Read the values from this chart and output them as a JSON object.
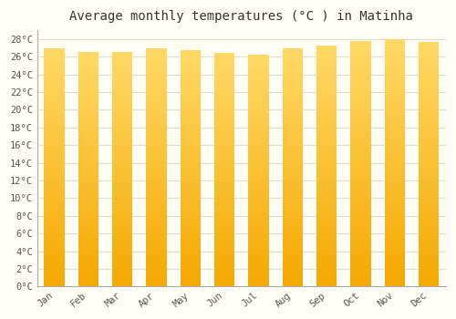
{
  "title": "Average monthly temperatures (°C ) in Matinha",
  "months": [
    "Jan",
    "Feb",
    "Mar",
    "Apr",
    "May",
    "Jun",
    "Jul",
    "Aug",
    "Sep",
    "Oct",
    "Nov",
    "Dec"
  ],
  "values": [
    27.0,
    26.5,
    26.5,
    27.0,
    26.8,
    26.4,
    26.2,
    27.0,
    27.3,
    27.8,
    28.0,
    27.7
  ],
  "ylim": [
    0,
    29
  ],
  "yticks": [
    0,
    2,
    4,
    6,
    8,
    10,
    12,
    14,
    16,
    18,
    20,
    22,
    24,
    26,
    28
  ],
  "bar_color_bottom": "#F5A800",
  "bar_color_top": "#FFD966",
  "background_color": "#FFFFF5",
  "grid_color": "#DDDDCC",
  "title_fontsize": 10,
  "tick_fontsize": 7.5,
  "fig_width": 5.0,
  "fig_height": 3.5,
  "dpi": 100,
  "bar_width": 0.6
}
